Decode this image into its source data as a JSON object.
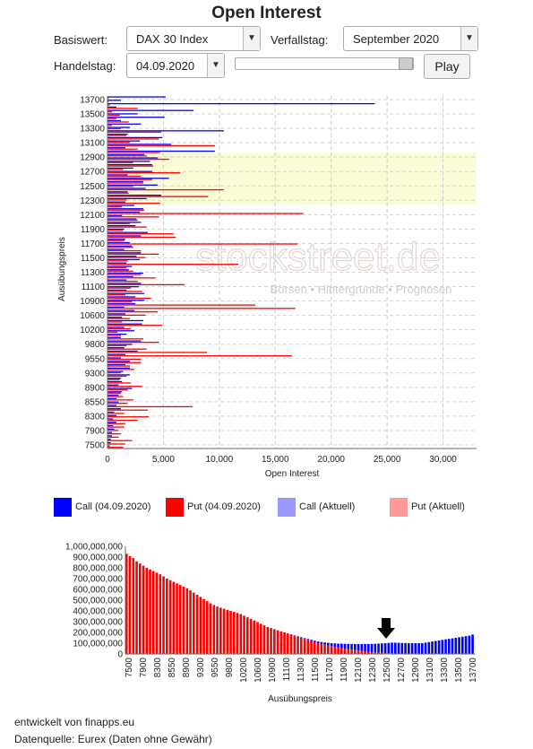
{
  "title": "Open Interest",
  "controls": {
    "basiswert_label": "Basiswert:",
    "basiswert_value": "DAX 30 Index",
    "verfallstag_label": "Verfallstag:",
    "verfallstag_value": "September 2020",
    "handelstag_label": "Handelstag:",
    "handelstag_value": "04.09.2020",
    "slider_value": 1.0,
    "play_label": "Play"
  },
  "watermark": {
    "logo": "stockstreet.de",
    "tagline": "Börsen • Hintergründe • Prognosen"
  },
  "legend": [
    {
      "label": "Call (04.09.2020)",
      "color": "#0000ff"
    },
    {
      "label": "Put (04.09.2020)",
      "color": "#ff0000"
    },
    {
      "label": "Call (Aktuell)",
      "color": "#9999ff"
    },
    {
      "label": "Put (Aktuell)",
      "color": "#ff9999"
    }
  ],
  "footer": {
    "line1": "entwickelt von finapps.eu",
    "line2": "Datenquelle: Eurex (Daten ohne Gewähr)"
  },
  "chart_data": [
    {
      "type": "bar",
      "orientation": "horizontal",
      "title": "",
      "xlabel": "Open Interest",
      "ylabel": "Ausübungspreis",
      "xlim": [
        0,
        33000
      ],
      "x_ticks": [
        "0",
        "5,000",
        "10,000",
        "15,000",
        "20,000",
        "25,000",
        "30,000"
      ],
      "y_tick_labels": [
        "13700",
        "13500",
        "13300",
        "13100",
        "12900",
        "12700",
        "12500",
        "12300",
        "12100",
        "11900",
        "11700",
        "11500",
        "11300",
        "11100",
        "10900",
        "10600",
        "10200",
        "9800",
        "9550",
        "9300",
        "8900",
        "8550",
        "8300",
        "7900",
        "7500"
      ],
      "bands": [
        {
          "from": "13700",
          "to": "13200",
          "color": "#e6f5e6"
        },
        {
          "from": "12900",
          "to": "12300",
          "color": "#fbfbd8"
        }
      ],
      "series": [
        {
          "name": "Call (04.09.2020)",
          "color": "#0000ff",
          "values": [
            5200,
            1200,
            23900,
            800,
            7700,
            2700,
            5100,
            1200,
            3000,
            2000,
            10400,
            1800,
            4900,
            2900,
            5700,
            1600,
            9600,
            3300,
            4500,
            3800,
            4000,
            2300,
            4000,
            1800,
            5500,
            3200,
            4500,
            3400,
            1800,
            4800,
            3500,
            1600,
            2400,
            3200,
            2900,
            1300,
            2600,
            3000,
            2500,
            1500,
            3600,
            3000,
            1600,
            2000,
            2200,
            1500,
            3000,
            2600,
            2900,
            1700,
            2200,
            1900,
            3200,
            2300,
            1700,
            3000,
            2800,
            1700,
            3300,
            2500,
            3300,
            2500,
            1500,
            2400,
            1600,
            1300,
            3200,
            3100,
            1500,
            2400,
            1700,
            1200,
            3000,
            2200,
            1500,
            2700,
            1600,
            1200,
            2000,
            1600,
            2000,
            1400,
            2000,
            1200,
            1300,
            1000,
            2200,
            1300,
            1000,
            800,
            1000,
            800,
            1200,
            600,
            800,
            500,
            800,
            500,
            600,
            400,
            400,
            300,
            300,
            200
          ]
        },
        {
          "name": "Put (04.09.2020)",
          "color": "#ff0000",
          "values": [
            100,
            100,
            200,
            2700,
            400,
            1100,
            800,
            1900,
            400,
            1200,
            4800,
            1700,
            4600,
            2000,
            9600,
            2700,
            4700,
            3500,
            5500,
            2300,
            4100,
            1400,
            6500,
            3000,
            4000,
            3200,
            2300,
            10400,
            1900,
            9000,
            1700,
            4700,
            1300,
            3300,
            17500,
            4600,
            2700,
            2000,
            3500,
            1400,
            5900,
            6100,
            1500,
            17000,
            2300,
            3000,
            4600,
            3400,
            1800,
            11700,
            1700,
            2300,
            3000,
            4300,
            2700,
            6900,
            2100,
            3100,
            1600,
            3900,
            2200,
            13200,
            16800,
            4500,
            3400,
            2000,
            1300,
            4900,
            2100,
            900,
            1200,
            3200,
            4600,
            1700,
            3500,
            8900,
            16500,
            3000,
            3000,
            2000,
            2400,
            1200,
            1700,
            1100,
            2100,
            3100,
            1800,
            1200,
            1400,
            2300,
            1800,
            7600,
            3600,
            1500,
            3700,
            2700,
            1600,
            1500,
            1000,
            1200,
            1000,
            2200,
            1600,
            1400
          ]
        }
      ]
    },
    {
      "type": "bar",
      "title": "",
      "xlabel": "Ausübungspreis",
      "ylabel": "",
      "ylim": [
        0,
        1000000000
      ],
      "y_ticks": [
        "0",
        "100,000,000",
        "200,000,000",
        "300,000,000",
        "400,000,000",
        "500,000,000",
        "600,000,000",
        "700,000,000",
        "800,000,000",
        "900,000,000",
        "1,000,000,000"
      ],
      "x_tick_labels": [
        "7500",
        "7900",
        "8300",
        "8550",
        "8900",
        "9300",
        "9550",
        "9800",
        "10200",
        "10600",
        "10900",
        "11100",
        "11300",
        "11500",
        "11700",
        "11900",
        "12100",
        "12300",
        "12500",
        "12700",
        "12900",
        "13100",
        "13300",
        "13500",
        "13700"
      ],
      "marker_at": "12500",
      "series": [
        {
          "name": "Call",
          "color": "#0000ff",
          "values": [
            0,
            0,
            0,
            0,
            0,
            0,
            0,
            0,
            0,
            0,
            0,
            0,
            0,
            0,
            0,
            0,
            0,
            0,
            0,
            0,
            0,
            0,
            0,
            0,
            0,
            0,
            0,
            0,
            0,
            0,
            0,
            0,
            0,
            0,
            0,
            0,
            0,
            0,
            0,
            0,
            0,
            0,
            0,
            0,
            0,
            0,
            0,
            0,
            1000000,
            2000000,
            3000000,
            4000000,
            5000000,
            7000000,
            9000000,
            11000000,
            13000000,
            16000000,
            19000000,
            22000000,
            25000000,
            28000000,
            32000000,
            36000000,
            40000000,
            44000000,
            48000000,
            52000000,
            56000000,
            60000000,
            64000000,
            68000000,
            72000000,
            76000000,
            80000000,
            84000000,
            88000000,
            92000000,
            96000000,
            100000000,
            100000000,
            100000000,
            100000000,
            100000000,
            100000000,
            100000000,
            100000000,
            100000000,
            100000000,
            105000000,
            110000000,
            115000000,
            120000000,
            125000000,
            130000000,
            135000000,
            140000000,
            145000000,
            150000000,
            155000000,
            160000000,
            165000000,
            170000000,
            180000000
          ]
        },
        {
          "name": "Put",
          "color": "#ff0000",
          "values": [
            930000000,
            910000000,
            890000000,
            860000000,
            840000000,
            820000000,
            800000000,
            785000000,
            770000000,
            755000000,
            740000000,
            720000000,
            700000000,
            685000000,
            670000000,
            655000000,
            640000000,
            625000000,
            610000000,
            590000000,
            570000000,
            550000000,
            530000000,
            510000000,
            490000000,
            470000000,
            455000000,
            440000000,
            430000000,
            420000000,
            410000000,
            400000000,
            390000000,
            380000000,
            370000000,
            355000000,
            340000000,
            325000000,
            310000000,
            295000000,
            280000000,
            265000000,
            250000000,
            240000000,
            230000000,
            220000000,
            210000000,
            200000000,
            190000000,
            180000000,
            170000000,
            160000000,
            150000000,
            140000000,
            130000000,
            120000000,
            110000000,
            100000000,
            92000000,
            85000000,
            78000000,
            72000000,
            66000000,
            60000000,
            55000000,
            50000000,
            45000000,
            40000000,
            36000000,
            32000000,
            28000000,
            24000000,
            20000000,
            17000000,
            14000000,
            12000000,
            10000000,
            8000000,
            6000000,
            5000000,
            4000000,
            3000000,
            2000000,
            1000000,
            0,
            0,
            0,
            0,
            0,
            0,
            0,
            0,
            0,
            0,
            0,
            0,
            0,
            0,
            0,
            0,
            0,
            0,
            0,
            0
          ]
        }
      ]
    }
  ]
}
